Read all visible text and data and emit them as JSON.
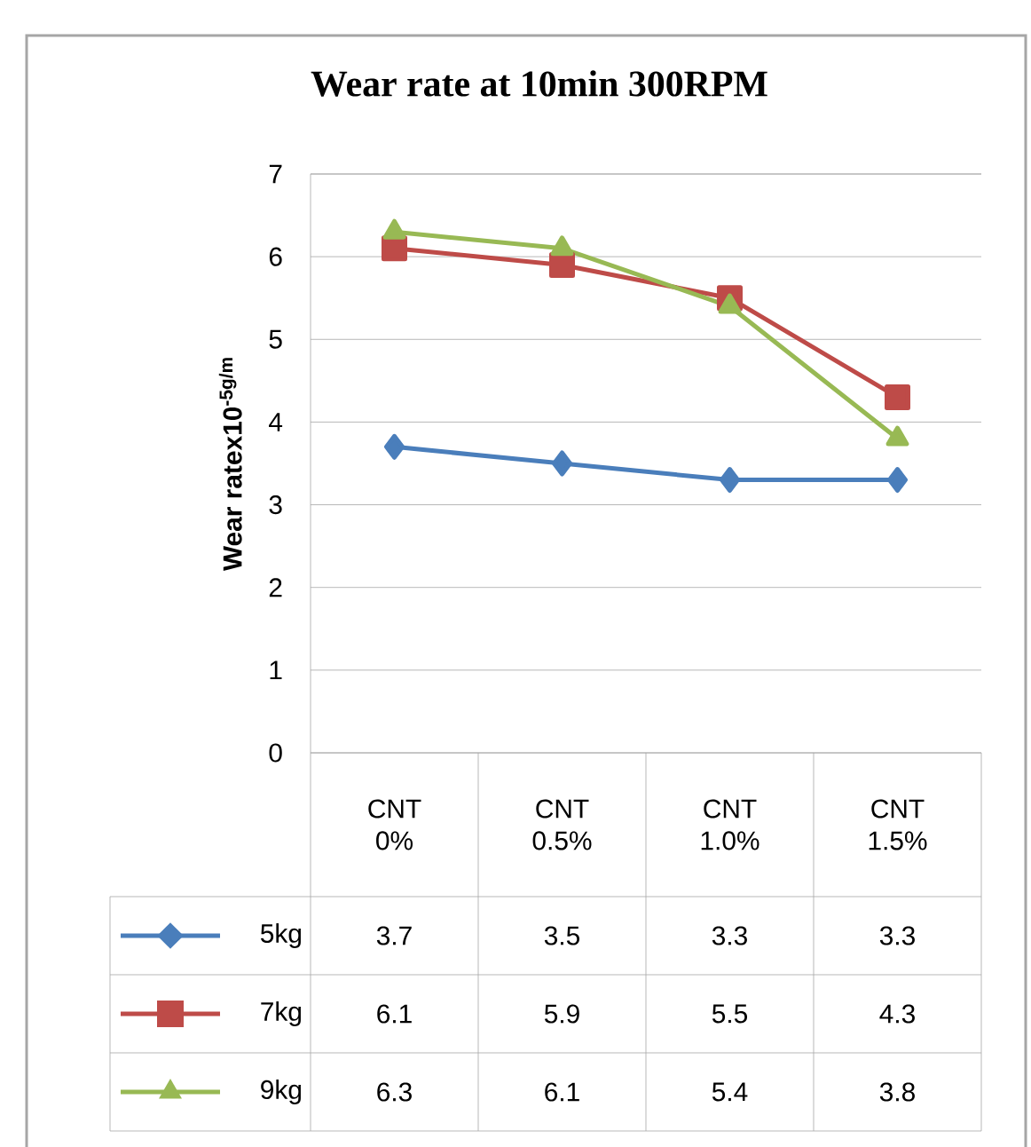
{
  "chart_data": {
    "type": "line",
    "title": "Wear rate at 10min 300RPM",
    "ylabel": "Wear ratex10$^{-5g/m}$",
    "categories": [
      "CNT 0%",
      "CNT 0.5%",
      "CNT 1.0%",
      "CNT 1.5%"
    ],
    "series": [
      {
        "name": "5kg",
        "color": "#4a7ebb",
        "marker": "diamond",
        "values": [
          3.7,
          3.5,
          3.3,
          3.3
        ]
      },
      {
        "name": "7kg",
        "color": "#be4b48",
        "marker": "square",
        "values": [
          6.1,
          5.9,
          5.5,
          4.3
        ]
      },
      {
        "name": "9kg",
        "color": "#98b954",
        "marker": "triangle",
        "values": [
          6.3,
          6.1,
          5.4,
          3.8
        ]
      }
    ],
    "ylim": [
      0,
      7
    ],
    "yticks": [
      0,
      1,
      2,
      3,
      4,
      5,
      6,
      7
    ],
    "grid": "y",
    "legend": "bottom",
    "data_labels": true
  }
}
